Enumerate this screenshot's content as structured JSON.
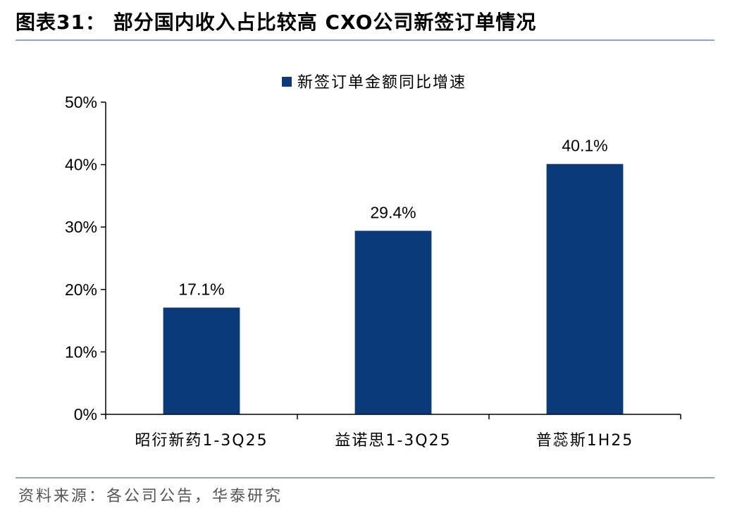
{
  "header": {
    "figure_title": "图表31：  部分国内收入占比较高 CXO公司新签订单情况"
  },
  "footer": {
    "source": "资料来源：各公司公告，华泰研究"
  },
  "colors": {
    "bar": "#0b3a7a",
    "rule": "#8fa6c9"
  },
  "chart_data": {
    "type": "bar",
    "categories": [
      "昭衍新药1-3Q25",
      "益诺思1-3Q25",
      "普蕊斯1H25"
    ],
    "series": [
      {
        "name": "新签订单金额同比增速",
        "values": [
          17.1,
          29.4,
          40.1
        ]
      }
    ],
    "data_labels": [
      "17.1%",
      "29.4%",
      "40.1%"
    ],
    "y_ticks": [
      "0%",
      "10%",
      "20%",
      "30%",
      "40%",
      "50%"
    ],
    "ylim": [
      0,
      50
    ],
    "y_unit": "%",
    "grid": false,
    "legend_position": "top-center"
  }
}
